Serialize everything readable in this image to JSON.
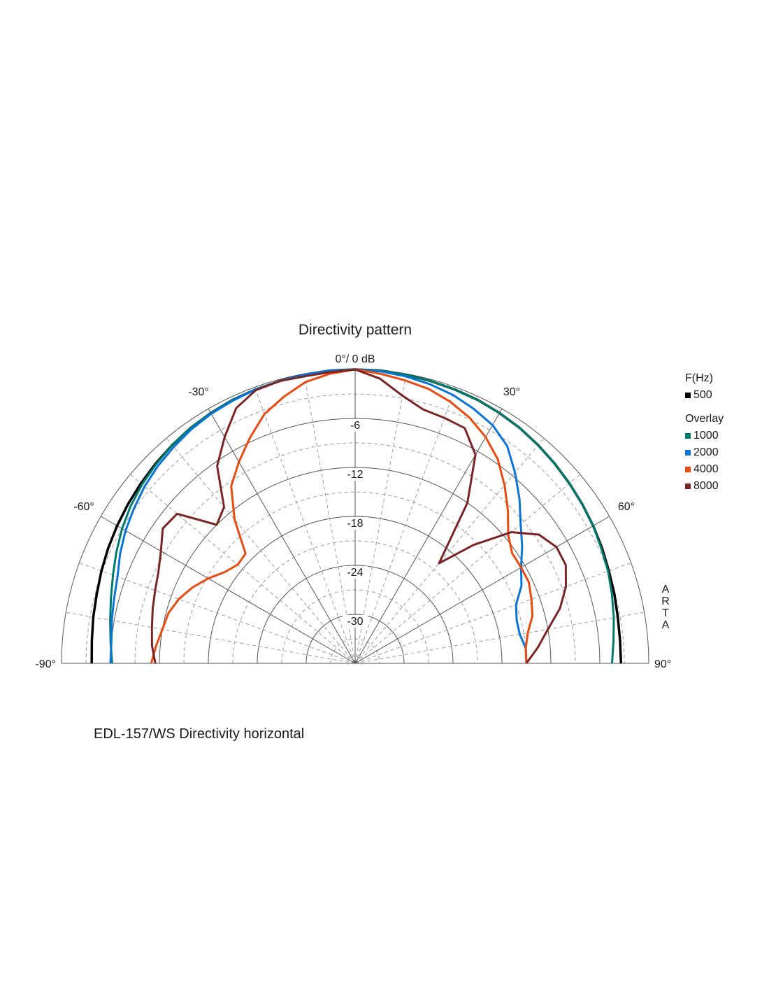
{
  "chart_data": {
    "type": "polar",
    "title": "Directivity pattern",
    "top_label": "0°/ 0 dB",
    "caption": "EDL-157/WS  Directivity horizontal",
    "watermark": [
      "A",
      "R",
      "T",
      "A"
    ],
    "angle_ticks": [
      {
        "angle": -90,
        "label": "-90°"
      },
      {
        "angle": -60,
        "label": "-60°"
      },
      {
        "angle": -30,
        "label": "-30°"
      },
      {
        "angle": 30,
        "label": "30°"
      },
      {
        "angle": 60,
        "label": "60°"
      },
      {
        "angle": 90,
        "label": "90°"
      }
    ],
    "radial_ticks": [
      {
        "db": -6,
        "label": "-6"
      },
      {
        "db": -12,
        "label": "-12"
      },
      {
        "db": -18,
        "label": "-18"
      },
      {
        "db": -24,
        "label": "-24"
      },
      {
        "db": -30,
        "label": "-30"
      }
    ],
    "r_range_db": [
      -36,
      0
    ],
    "angle_range_deg": [
      -90,
      90
    ],
    "grid": true,
    "legend": {
      "position": "right",
      "header": "F(Hz)",
      "overlay_header": "Overlay",
      "main": {
        "name": "500",
        "color": "#000000"
      },
      "overlay": [
        {
          "name": "1000",
          "color": "#007a6e"
        },
        {
          "name": "2000",
          "color": "#0a74d8"
        },
        {
          "name": "4000",
          "color": "#e84a10"
        },
        {
          "name": "8000",
          "color": "#7b2424"
        }
      ]
    },
    "angles": [
      -90,
      -85,
      -80,
      -75,
      -70,
      -65,
      -60,
      -55,
      -50,
      -45,
      -40,
      -35,
      -30,
      -25,
      -20,
      -15,
      -10,
      -5,
      0,
      5,
      10,
      15,
      20,
      25,
      30,
      35,
      40,
      45,
      50,
      55,
      60,
      65,
      70,
      75,
      80,
      85,
      90
    ],
    "series": [
      {
        "name": "500",
        "color": "#000000",
        "width": 3.5,
        "values": [
          -3.7,
          -3.6,
          -3.4,
          -3.2,
          -2.9,
          -2.6,
          -2.3,
          -2.0,
          -1.7,
          -1.4,
          -1.1,
          -0.8,
          -0.6,
          -0.4,
          -0.3,
          -0.2,
          -0.1,
          0.0,
          0.0,
          0.0,
          -0.1,
          -0.2,
          -0.3,
          -0.4,
          -0.6,
          -0.8,
          -1.1,
          -1.4,
          -1.7,
          -2.0,
          -2.3,
          -2.6,
          -2.9,
          -3.1,
          -3.3,
          -3.4,
          -3.4
        ]
      },
      {
        "name": "1000",
        "color": "#007a6e",
        "width": 3,
        "values": [
          -6.2,
          -5.9,
          -5.5,
          -5.0,
          -4.4,
          -3.7,
          -3.0,
          -2.4,
          -1.9,
          -1.5,
          -1.1,
          -0.8,
          -0.6,
          -0.4,
          -0.3,
          -0.2,
          -0.1,
          0.0,
          0.0,
          0.0,
          -0.1,
          -0.2,
          -0.3,
          -0.4,
          -0.6,
          -0.8,
          -1.1,
          -1.4,
          -1.7,
          -2.0,
          -2.3,
          -2.7,
          -3.0,
          -3.4,
          -3.8,
          -4.2,
          -4.5
        ]
      },
      {
        "name": "2000",
        "color": "#0a74d8",
        "width": 3,
        "values": [
          -6.0,
          -6.0,
          -5.7,
          -5.4,
          -5.0,
          -4.2,
          -3.5,
          -2.9,
          -2.3,
          -1.8,
          -1.4,
          -1.0,
          -0.7,
          -0.5,
          -0.3,
          -0.2,
          -0.1,
          0.0,
          0.0,
          -0.1,
          -0.3,
          -0.6,
          -1.0,
          -1.6,
          -2.3,
          -3.5,
          -5.5,
          -7.5,
          -9.5,
          -11.0,
          -12.5,
          -13.5,
          -15.0,
          -15.5,
          -15.5,
          -15.0,
          -15.0
        ]
      },
      {
        "name": "4000",
        "color": "#e84a10",
        "width": 3,
        "values": [
          -11.0,
          -11.5,
          -12.0,
          -12.3,
          -13.0,
          -14.0,
          -15.2,
          -16.5,
          -17.2,
          -17.0,
          -13.0,
          -9.5,
          -7.5,
          -5.5,
          -3.5,
          -2.2,
          -1.0,
          -0.4,
          0.0,
          -0.4,
          -0.8,
          -1.2,
          -1.9,
          -2.8,
          -4.0,
          -5.5,
          -7.5,
          -9.5,
          -11.5,
          -12.5,
          -12.5,
          -12.5,
          -13.0,
          -13.5,
          -14.5,
          -15.0,
          -15.0
        ]
      },
      {
        "name": "8000",
        "color": "#7b2424",
        "width": 3,
        "values": [
          -11.5,
          -11.0,
          -10.7,
          -10.3,
          -9.9,
          -9.4,
          -8.5,
          -7.2,
          -7.5,
          -12.0,
          -11.0,
          -6.5,
          -4.0,
          -1.5,
          -0.4,
          -0.2,
          -0.3,
          -0.2,
          0.0,
          -1.0,
          -2.7,
          -3.8,
          -4.0,
          -4.2,
          -6.5,
          -12.0,
          -20.0,
          -15.5,
          -11.0,
          -8.5,
          -7.5,
          -7.5,
          -8.5,
          -10.0,
          -12.0,
          -13.5,
          -15.0
        ]
      }
    ]
  }
}
